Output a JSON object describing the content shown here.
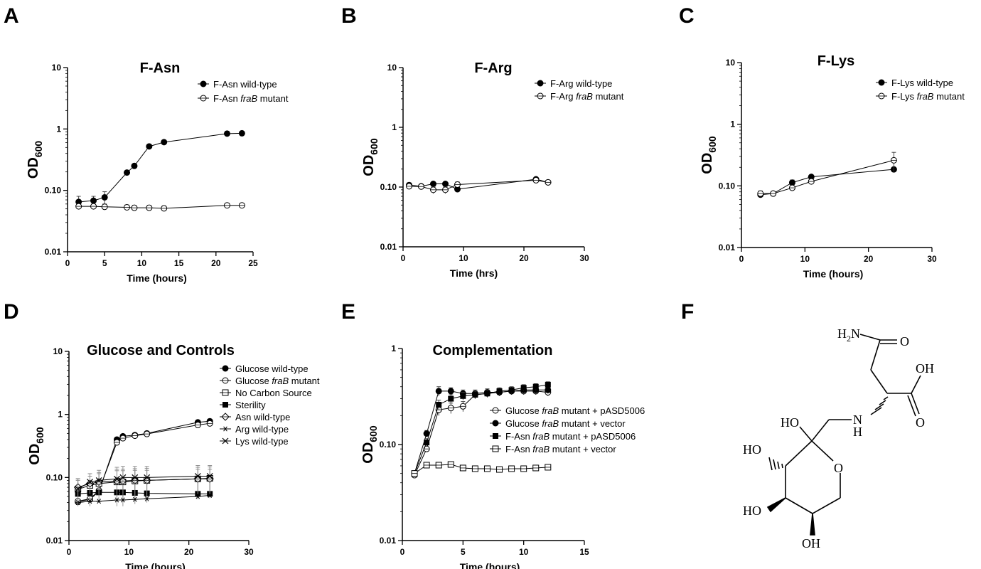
{
  "chart_data": [
    {
      "panel": "A",
      "type": "line",
      "title": "F-Asn",
      "xlabel": "Time (hours)",
      "ylabel": "OD",
      "ylabel_sub": "600",
      "xlim": [
        0,
        25
      ],
      "xticks": [
        "0",
        "5",
        "10",
        "15",
        "20",
        "25"
      ],
      "ylim": [
        0.01,
        10
      ],
      "yscale": "log",
      "yticks": [
        "0.01",
        "0.10",
        "1",
        "10"
      ],
      "legend_position": "top-right",
      "series": [
        {
          "name_pre": "F-Asn wild-type",
          "name_em": "",
          "name_post": "",
          "marker": "filled-circle",
          "x": [
            1.5,
            3.5,
            5,
            8,
            9,
            11,
            13,
            21.5,
            23.5
          ],
          "y": [
            0.065,
            0.068,
            0.077,
            0.195,
            0.25,
            0.52,
            0.61,
            0.84,
            0.85
          ],
          "err": [
            0.015,
            0.012,
            0.018,
            0.01,
            0.01,
            0.02,
            0.02,
            0.08,
            0.05
          ]
        },
        {
          "name_pre": "F-Asn ",
          "name_em": "fraB",
          "name_post": " mutant",
          "marker": "open-circle",
          "x": [
            1.5,
            3.5,
            5,
            8,
            9,
            11,
            13,
            21.5,
            23.5
          ],
          "y": [
            0.055,
            0.055,
            0.054,
            0.053,
            0.052,
            0.052,
            0.051,
            0.057,
            0.057
          ],
          "err": [
            0.005,
            0.005,
            0.006,
            0.005,
            0.005,
            0.005,
            0.005,
            0.003,
            0.003
          ]
        }
      ]
    },
    {
      "panel": "B",
      "type": "line",
      "title": "F-Arg",
      "xlabel": "Time (hrs)",
      "ylabel": "OD",
      "ylabel_sub": "600",
      "xlim": [
        0,
        30
      ],
      "xticks": [
        "0",
        "10",
        "20",
        "30"
      ],
      "ylim": [
        0.01,
        10
      ],
      "yscale": "log",
      "yticks": [
        "0.01",
        "0.10",
        "1",
        "10"
      ],
      "legend_position": "top-right",
      "series": [
        {
          "name_pre": "F-Arg wild-type",
          "name_em": "",
          "name_post": "",
          "marker": "filled-circle",
          "x": [
            1,
            3,
            5,
            7,
            9,
            22,
            24
          ],
          "y": [
            0.108,
            0.103,
            0.113,
            0.113,
            0.092,
            0.135,
            0.12
          ],
          "err": [
            0.01,
            0.005,
            0.005,
            0.005,
            0.01,
            0.005,
            0.005
          ]
        },
        {
          "name_pre": "F-Arg ",
          "name_em": "fraB",
          "name_post": " mutant",
          "marker": "open-circle",
          "x": [
            1,
            3,
            5,
            7,
            9,
            22,
            24
          ],
          "y": [
            0.103,
            0.102,
            0.09,
            0.09,
            0.11,
            0.13,
            0.12
          ],
          "err": [
            0.01,
            0.008,
            0.012,
            0.012,
            0.012,
            0.008,
            0.005
          ]
        }
      ]
    },
    {
      "panel": "C",
      "type": "line",
      "title": "F-Lys",
      "xlabel": "Time (hours)",
      "ylabel": "OD",
      "ylabel_sub": "600",
      "xlim": [
        0,
        30
      ],
      "xticks": [
        "0",
        "10",
        "20",
        "30"
      ],
      "ylim": [
        0.01,
        10
      ],
      "yscale": "log",
      "yticks": [
        "0.01",
        "0.10",
        "1",
        "10"
      ],
      "legend_position": "top-right",
      "series": [
        {
          "name_pre": "F-Lys wild-type",
          "name_em": "",
          "name_post": "",
          "marker": "filled-circle",
          "x": [
            3,
            5,
            8,
            11,
            24
          ],
          "y": [
            0.072,
            0.075,
            0.113,
            0.14,
            0.185
          ],
          "err": [
            0.007,
            0.005,
            0.012,
            0.006,
            0.01
          ]
        },
        {
          "name_pre": "F-Lys ",
          "name_em": "fraB",
          "name_post": " mutant",
          "marker": "open-circle",
          "x": [
            3,
            5,
            8,
            11,
            24
          ],
          "y": [
            0.075,
            0.075,
            0.093,
            0.118,
            0.26
          ],
          "err": [
            0.008,
            0.005,
            0.008,
            0.012,
            0.09
          ]
        }
      ]
    },
    {
      "panel": "D",
      "type": "line",
      "title": "Glucose and Controls",
      "xlabel": "Time (hours)",
      "ylabel": "OD",
      "ylabel_sub": "600",
      "xlim": [
        0,
        30
      ],
      "xticks": [
        "0",
        "10",
        "20",
        "30"
      ],
      "ylim": [
        0.01,
        10
      ],
      "yscale": "log",
      "yticks": [
        "0.01",
        "0.10",
        "1",
        "10"
      ],
      "legend_position": "right",
      "series": [
        {
          "name_pre": "Glucose wild-type",
          "name_em": "",
          "name_post": "",
          "marker": "filled-circle",
          "x": [
            1.5,
            3.5,
            5,
            8,
            9,
            11,
            13,
            21.5,
            23.5
          ],
          "y": [
            0.041,
            0.045,
            0.06,
            0.4,
            0.45,
            0.47,
            0.5,
            0.75,
            0.78
          ],
          "err": []
        },
        {
          "name_pre": "Glucose ",
          "name_em": "fraB",
          "name_post": " mutant",
          "marker": "open-circle",
          "x": [
            1.5,
            3.5,
            5,
            8,
            9,
            11,
            13,
            21.5,
            23.5
          ],
          "y": [
            0.042,
            0.046,
            0.062,
            0.36,
            0.42,
            0.46,
            0.49,
            0.68,
            0.72
          ],
          "err": []
        },
        {
          "name_pre": "No Carbon Source",
          "name_em": "",
          "name_post": "",
          "marker": "open-square",
          "x": [
            1.5,
            3.5,
            5,
            8,
            9,
            11,
            13,
            21.5,
            23.5
          ],
          "y": [
            0.065,
            0.075,
            0.08,
            0.085,
            0.085,
            0.088,
            0.09,
            0.095,
            0.097
          ],
          "err": [
            0.03,
            0.04,
            0.04,
            0.05,
            0.05,
            0.05,
            0.05,
            0.05,
            0.05
          ]
        },
        {
          "name_pre": "Sterility",
          "name_em": "",
          "name_post": "",
          "marker": "filled-square",
          "x": [
            1.5,
            3.5,
            5,
            8,
            9,
            11,
            13,
            21.5,
            23.5
          ],
          "y": [
            0.055,
            0.057,
            0.058,
            0.058,
            0.058,
            0.057,
            0.056,
            0.055,
            0.055
          ],
          "err": []
        },
        {
          "name_pre": "Asn wild-type",
          "name_em": "",
          "name_post": "",
          "marker": "open-diamond",
          "x": [
            1.5,
            3.5,
            5,
            8,
            9,
            11,
            13,
            21.5,
            23.5
          ],
          "y": [
            0.07,
            0.08,
            0.085,
            0.088,
            0.088,
            0.09,
            0.09,
            0.095,
            0.095
          ],
          "err": [
            0.02,
            0.025,
            0.03,
            0.04,
            0.04,
            0.04,
            0.04,
            0.04,
            0.04
          ]
        },
        {
          "name_pre": "Arg wild-type",
          "name_em": "",
          "name_post": "",
          "marker": "star",
          "x": [
            1.5,
            3.5,
            5,
            8,
            9,
            11,
            13,
            21.5,
            23.5
          ],
          "y": [
            0.04,
            0.042,
            0.042,
            0.044,
            0.044,
            0.045,
            0.046,
            0.05,
            0.052
          ],
          "err": []
        },
        {
          "name_pre": "Lys wild-type",
          "name_em": "",
          "name_post": "",
          "marker": "x",
          "x": [
            1.5,
            3.5,
            5,
            8,
            9,
            11,
            13,
            21.5,
            23.5
          ],
          "y": [
            0.066,
            0.085,
            0.09,
            0.095,
            0.1,
            0.1,
            0.1,
            0.105,
            0.105
          ],
          "err": [
            0.03,
            0.03,
            0.04,
            0.05,
            0.05,
            0.05,
            0.05,
            0.05,
            0.05
          ]
        }
      ]
    },
    {
      "panel": "E",
      "type": "line",
      "title": "Complementation",
      "xlabel": "Time (hours)",
      "ylabel": "OD",
      "ylabel_sub": "600",
      "xlim": [
        0,
        15
      ],
      "xticks": [
        "0",
        "5",
        "10",
        "15"
      ],
      "ylim": [
        0.01,
        1
      ],
      "yscale": "log",
      "yticks": [
        "0.01",
        "0.10",
        "1"
      ],
      "legend_position": "right",
      "series": [
        {
          "name_pre": "Glucose ",
          "name_em": "fraB",
          "name_post": " mutant + pASD5006",
          "marker": "open-circle",
          "x": [
            1,
            2,
            3,
            4,
            5,
            6,
            7,
            8,
            9,
            10,
            11,
            12
          ],
          "y": [
            0.048,
            0.09,
            0.23,
            0.24,
            0.25,
            0.33,
            0.34,
            0.35,
            0.36,
            0.36,
            0.36,
            0.35
          ],
          "err": [
            0.003,
            0.005,
            0.03,
            0.03,
            0.03,
            0.03,
            0.03,
            0.03,
            0.03,
            0.03,
            0.03,
            0.03
          ]
        },
        {
          "name_pre": "Glucose ",
          "name_em": "fraB",
          "name_post": " mutant + vector",
          "marker": "filled-circle",
          "x": [
            1,
            2,
            3,
            4,
            5,
            6,
            7,
            8,
            9,
            10,
            11,
            12
          ],
          "y": [
            0.05,
            0.13,
            0.36,
            0.36,
            0.34,
            0.34,
            0.35,
            0.35,
            0.36,
            0.37,
            0.37,
            0.37
          ],
          "err": [
            0.003,
            0.01,
            0.04,
            0.03,
            0.03,
            0.03,
            0.03,
            0.03,
            0.03,
            0.03,
            0.03,
            0.03
          ]
        },
        {
          "name_pre": "F-Asn ",
          "name_em": "fraB",
          "name_post": " mutant + pASD5006",
          "marker": "filled-square",
          "x": [
            1,
            2,
            3,
            4,
            5,
            6,
            7,
            8,
            9,
            10,
            11,
            12
          ],
          "y": [
            0.05,
            0.105,
            0.26,
            0.3,
            0.32,
            0.33,
            0.34,
            0.36,
            0.37,
            0.39,
            0.4,
            0.42
          ],
          "err": [
            0.003,
            0.01,
            0.03,
            0.03,
            0.03,
            0.03,
            0.03,
            0.03,
            0.03,
            0.03,
            0.03,
            0.03
          ]
        },
        {
          "name_pre": "F-Asn ",
          "name_em": "fraB",
          "name_post": " mutant + vector",
          "marker": "open-square",
          "x": [
            1,
            2,
            3,
            4,
            5,
            6,
            7,
            8,
            9,
            10,
            11,
            12
          ],
          "y": [
            0.05,
            0.061,
            0.061,
            0.062,
            0.057,
            0.056,
            0.056,
            0.055,
            0.056,
            0.056,
            0.057,
            0.058
          ],
          "err": [
            0.003,
            0.003,
            0.003,
            0.003,
            0.003,
            0.003,
            0.003,
            0.003,
            0.003,
            0.003,
            0.003,
            0.003
          ]
        }
      ]
    }
  ],
  "panels": {
    "A": "A",
    "B": "B",
    "C": "C",
    "D": "D",
    "E": "E",
    "F": "F"
  },
  "structure_labels": {
    "h2n": "H",
    "h2n_sub": "2",
    "h2n_n": "N",
    "o_amide": "O",
    "oh_acid": "OH",
    "o_acid": "O",
    "nh_n": "N",
    "nh_h": "H",
    "ho_top": "HO",
    "ho_left": "HO",
    "ho_bottom": "HO",
    "ring_o": "O",
    "oh_bottom": "OH"
  }
}
